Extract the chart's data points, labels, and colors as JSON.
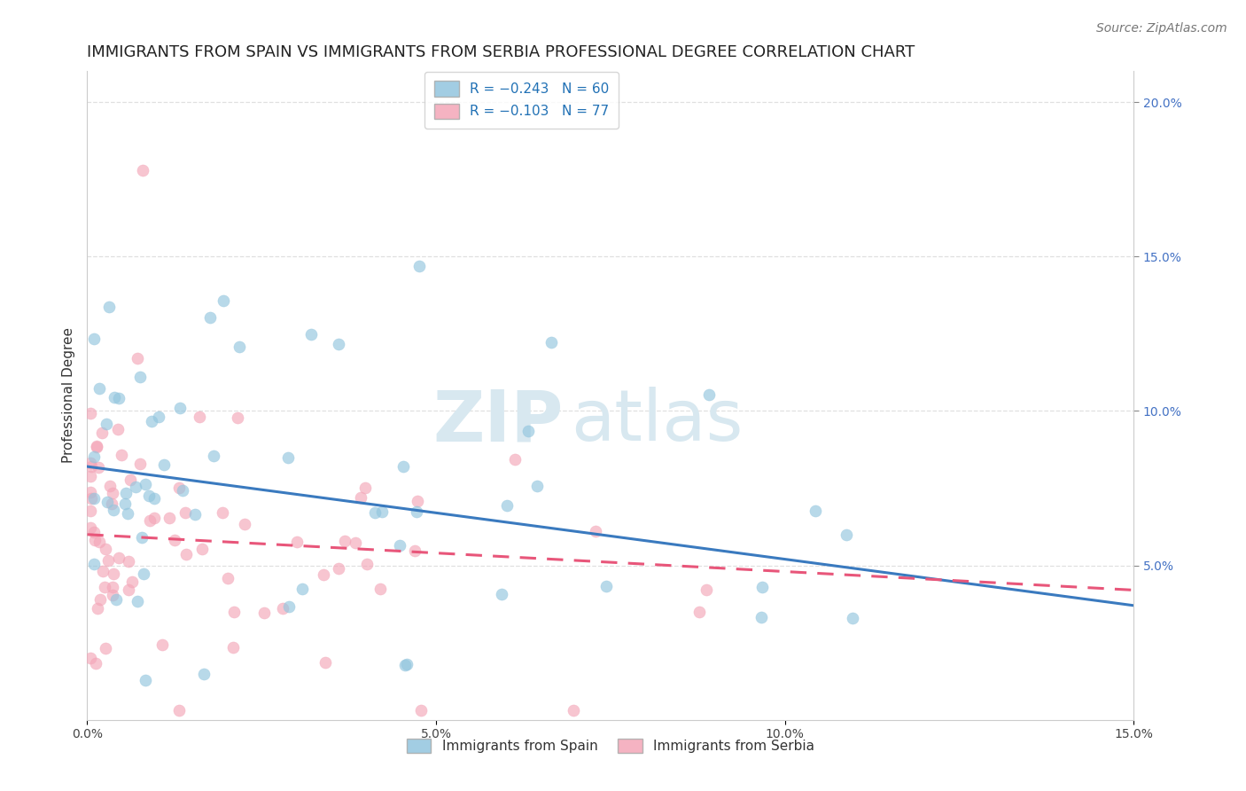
{
  "title": "IMMIGRANTS FROM SPAIN VS IMMIGRANTS FROM SERBIA PROFESSIONAL DEGREE CORRELATION CHART",
  "source": "Source: ZipAtlas.com",
  "ylabel": "Professional Degree",
  "legend_labels": [
    "Immigrants from Spain",
    "Immigrants from Serbia"
  ],
  "legend_r": [
    "R = -0.243",
    "N = 60"
  ],
  "legend_n": [
    "R = -0.103",
    "N = 77"
  ],
  "blue_color": "#92c5de",
  "pink_color": "#f4a6b8",
  "blue_line_color": "#3a7abf",
  "pink_line_color": "#e8567a",
  "xmin": 0.0,
  "xmax": 0.15,
  "ymin": 0.0,
  "ymax": 0.21,
  "yticks_right": [
    0.05,
    0.1,
    0.15,
    0.2
  ],
  "ytick_labels_right": [
    "5.0%",
    "10.0%",
    "15.0%",
    "20.0%"
  ],
  "xticks": [
    0.0,
    0.05,
    0.1,
    0.15
  ],
  "xtick_labels": [
    "0.0%",
    "5.0%",
    "10.0%",
    "15.0%"
  ],
  "watermark_zip": "ZIP",
  "watermark_atlas": "atlas",
  "blue_intercept": 0.082,
  "blue_slope": -0.3,
  "pink_intercept": 0.06,
  "pink_slope": -0.12,
  "title_fontsize": 13,
  "axis_fontsize": 11,
  "tick_fontsize": 10,
  "legend_fontsize": 11,
  "source_fontsize": 10,
  "background_color": "#ffffff",
  "grid_color": "#e0e0e0"
}
